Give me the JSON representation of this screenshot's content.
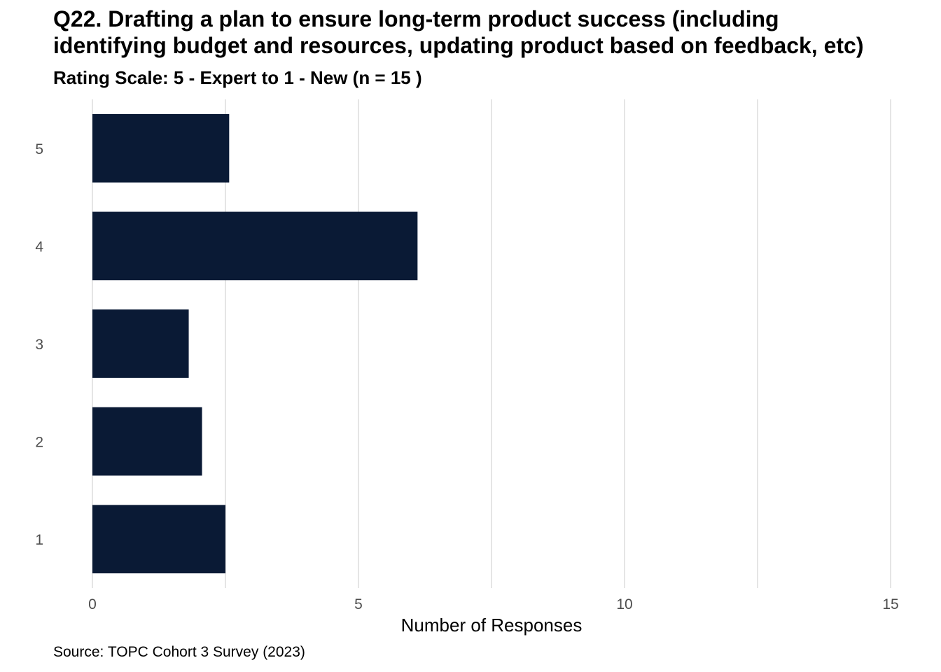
{
  "chart_data": {
    "type": "bar",
    "orientation": "horizontal",
    "title": "Q22. Drafting a plan to ensure long-term product success (including\nidentifying budget and resources, updating product based on feedback, etc)",
    "subtitle": "Rating Scale: 5 - Expert to 1 - New (n = 15 )",
    "caption": "Source: TOPC Cohort 3 Survey (2023)",
    "xlabel": "Number of Responses",
    "ylabel": "",
    "categories": [
      "5",
      "4",
      "3",
      "2",
      "1"
    ],
    "values": [
      2.57,
      6.11,
      1.81,
      2.06,
      2.5
    ],
    "xlim": [
      0,
      15
    ],
    "x_ticks": [
      "0",
      "5",
      "10",
      "15"
    ],
    "grid": true,
    "legend": "none",
    "bar_color": "#0a1a35",
    "grid_color": "#e5e5e5"
  }
}
